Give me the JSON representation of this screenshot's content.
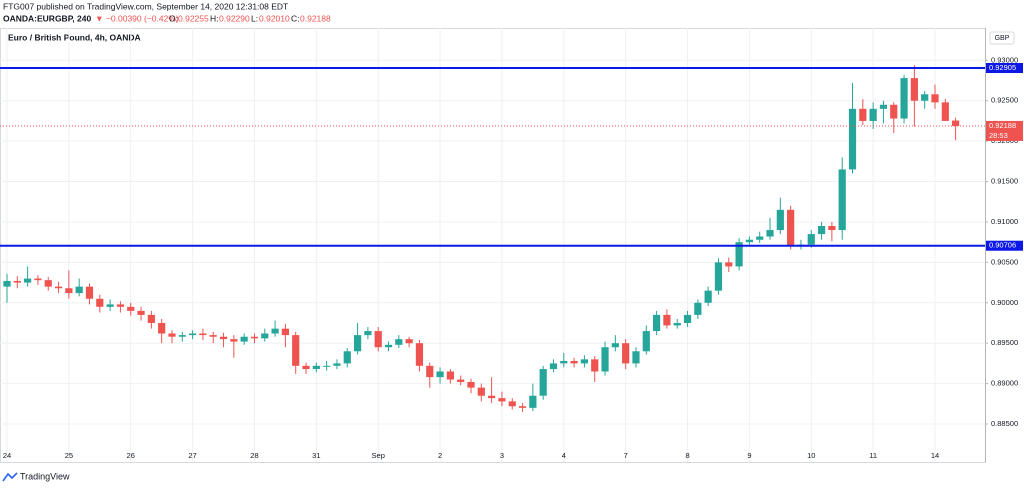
{
  "header": {
    "published": "FTG007 published on TradingView.com, September 14, 2020 12:31:08 EDT",
    "symbol": "OANDA:EURGBP, 240",
    "change": "▼ −0.00390 (−0.42%)",
    "o_label": "O:",
    "o": "0.92255",
    "h_label": "H:",
    "h": "0.92290",
    "l_label": "L:",
    "l": "0.92010",
    "c_label": "C:",
    "c": "0.92188"
  },
  "footer": "TradingView",
  "chart_data": {
    "type": "candlestick",
    "title": "Euro / British Pound, 4h, OANDA",
    "currency": "GBP",
    "up_color": "#26a69a",
    "down_color": "#ef5350",
    "categories": [
      "24",
      null,
      null,
      null,
      null,
      null,
      "25",
      null,
      null,
      null,
      null,
      null,
      "26",
      null,
      null,
      null,
      null,
      null,
      "27",
      null,
      null,
      null,
      null,
      null,
      "28",
      null,
      null,
      null,
      null,
      null,
      "31",
      null,
      null,
      null,
      null,
      null,
      "Sep",
      null,
      null,
      null,
      null,
      null,
      "2",
      null,
      null,
      null,
      null,
      null,
      "3",
      null,
      null,
      null,
      null,
      null,
      "4",
      null,
      null,
      null,
      null,
      null,
      "7",
      null,
      null,
      null,
      null,
      null,
      "8",
      null,
      null,
      null,
      null,
      null,
      "9",
      null,
      null,
      null,
      null,
      null,
      "10",
      null,
      null,
      null,
      null,
      null,
      "11",
      null,
      null,
      null,
      null,
      null,
      "14",
      null,
      null
    ],
    "open": [
      0.902,
      0.9027,
      0.9025,
      0.903,
      0.9028,
      0.902,
      0.9018,
      0.9012,
      0.902,
      0.9005,
      0.8995,
      0.8998,
      0.8995,
      0.899,
      0.8985,
      0.8975,
      0.8962,
      0.8958,
      0.896,
      0.8962,
      0.896,
      0.8958,
      0.8955,
      0.8952,
      0.8958,
      0.8956,
      0.8962,
      0.8968,
      0.896,
      0.8922,
      0.8918,
      0.8922,
      0.8922,
      0.8925,
      0.894,
      0.896,
      0.8965,
      0.8945,
      0.8948,
      0.8955,
      0.895,
      0.8922,
      0.8908,
      0.8915,
      0.8905,
      0.8902,
      0.8895,
      0.8885,
      0.8882,
      0.8878,
      0.8872,
      0.887,
      0.8885,
      0.8918,
      0.8925,
      0.8928,
      0.8925,
      0.893,
      0.8915,
      0.8945,
      0.895,
      0.8925,
      0.894,
      0.8965,
      0.8985,
      0.8972,
      0.8975,
      0.8985,
      0.9,
      0.9015,
      0.905,
      0.9045,
      0.9075,
      0.9078,
      0.9082,
      0.909,
      0.9115,
      0.907,
      0.9072,
      0.9085,
      0.9095,
      0.909,
      0.9165,
      0.924,
      0.9225,
      0.924,
      0.9245,
      0.9228,
      0.9278,
      0.925,
      0.9258,
      0.9248,
      0.92255
    ],
    "high": [
      0.9036,
      0.9033,
      0.9045,
      0.9034,
      0.9032,
      0.9026,
      0.904,
      0.903,
      0.9024,
      0.901,
      0.9004,
      0.9002,
      0.9,
      0.8995,
      0.899,
      0.898,
      0.8966,
      0.8964,
      0.8966,
      0.8968,
      0.8964,
      0.8963,
      0.896,
      0.8962,
      0.8962,
      0.8968,
      0.8978,
      0.8974,
      0.8964,
      0.8926,
      0.8926,
      0.8928,
      0.893,
      0.8944,
      0.8975,
      0.897,
      0.897,
      0.8952,
      0.896,
      0.8958,
      0.8954,
      0.8926,
      0.892,
      0.8918,
      0.891,
      0.8906,
      0.89,
      0.8908,
      0.889,
      0.8882,
      0.8876,
      0.89,
      0.8922,
      0.893,
      0.8938,
      0.8932,
      0.8935,
      0.8934,
      0.8952,
      0.896,
      0.8955,
      0.8945,
      0.8972,
      0.899,
      0.8992,
      0.898,
      0.899,
      0.9004,
      0.902,
      0.9055,
      0.9056,
      0.908,
      0.9082,
      0.9088,
      0.9105,
      0.913,
      0.912,
      0.9078,
      0.909,
      0.91,
      0.91,
      0.918,
      0.9272,
      0.9252,
      0.9248,
      0.925,
      0.9248,
      0.9282,
      0.9294,
      0.9262,
      0.927,
      0.9252,
      0.9229
    ],
    "low": [
      0.9,
      0.9018,
      0.902,
      0.9022,
      0.9015,
      0.9012,
      0.9005,
      0.9008,
      0.8998,
      0.8988,
      0.899,
      0.8988,
      0.8984,
      0.8978,
      0.8968,
      0.895,
      0.895,
      0.8952,
      0.8955,
      0.8954,
      0.895,
      0.8945,
      0.8932,
      0.8948,
      0.895,
      0.8952,
      0.8958,
      0.8945,
      0.8912,
      0.8912,
      0.8914,
      0.8916,
      0.8918,
      0.892,
      0.8936,
      0.8955,
      0.894,
      0.894,
      0.8944,
      0.8945,
      0.8915,
      0.8895,
      0.89,
      0.89,
      0.8898,
      0.8888,
      0.8878,
      0.8876,
      0.8872,
      0.8868,
      0.8865,
      0.8866,
      0.888,
      0.8914,
      0.892,
      0.892,
      0.892,
      0.8902,
      0.891,
      0.894,
      0.8918,
      0.892,
      0.8936,
      0.896,
      0.8968,
      0.8968,
      0.897,
      0.898,
      0.8996,
      0.901,
      0.9038,
      0.904,
      0.907,
      0.9074,
      0.9078,
      0.9085,
      0.9066,
      0.9066,
      0.9068,
      0.9078,
      0.9076,
      0.9078,
      0.916,
      0.922,
      0.9215,
      0.9222,
      0.921,
      0.9222,
      0.9218,
      0.924,
      0.924,
      0.9228,
      0.9201
    ],
    "close": [
      0.9027,
      0.9025,
      0.903,
      0.9028,
      0.902,
      0.9018,
      0.9012,
      0.902,
      0.9005,
      0.8995,
      0.8998,
      0.8995,
      0.899,
      0.8985,
      0.8975,
      0.8962,
      0.8958,
      0.896,
      0.8962,
      0.896,
      0.8958,
      0.8955,
      0.8952,
      0.8958,
      0.8956,
      0.8962,
      0.8968,
      0.896,
      0.8922,
      0.8918,
      0.8922,
      0.8922,
      0.8925,
      0.894,
      0.896,
      0.8965,
      0.8945,
      0.8948,
      0.8955,
      0.895,
      0.8922,
      0.8908,
      0.8915,
      0.8905,
      0.8902,
      0.8895,
      0.8885,
      0.8882,
      0.8878,
      0.8872,
      0.887,
      0.8885,
      0.8918,
      0.8925,
      0.8928,
      0.8925,
      0.893,
      0.8915,
      0.8945,
      0.895,
      0.8925,
      0.894,
      0.8965,
      0.8985,
      0.8972,
      0.8975,
      0.8985,
      0.9,
      0.9015,
      0.905,
      0.9045,
      0.9075,
      0.9078,
      0.9082,
      0.909,
      0.9115,
      0.907,
      0.9072,
      0.9085,
      0.9095,
      0.909,
      0.9165,
      0.924,
      0.9225,
      0.924,
      0.9245,
      0.9228,
      0.9278,
      0.925,
      0.9258,
      0.9248,
      0.9225,
      0.92188
    ],
    "ylim": [
      0.8803,
      0.934
    ],
    "yticks": [
      {
        "value": 0.885,
        "label": "0.88500"
      },
      {
        "value": 0.89,
        "label": "0.89000"
      },
      {
        "value": 0.895,
        "label": "0.89500"
      },
      {
        "value": 0.9,
        "label": "0.90000"
      },
      {
        "value": 0.905,
        "label": "0.90500"
      },
      {
        "value": 0.91,
        "label": "0.91000"
      },
      {
        "value": 0.915,
        "label": "0.91500"
      },
      {
        "value": 0.92,
        "label": "0.92000"
      },
      {
        "value": 0.925,
        "label": "0.92500"
      },
      {
        "value": 0.93,
        "label": "0.93000"
      }
    ],
    "grid": true,
    "levels": [
      {
        "value": 0.92905,
        "color": "#0c18e6"
      },
      {
        "value": 0.90706,
        "color": "#0c18e6"
      }
    ],
    "countdown": "28:53"
  }
}
